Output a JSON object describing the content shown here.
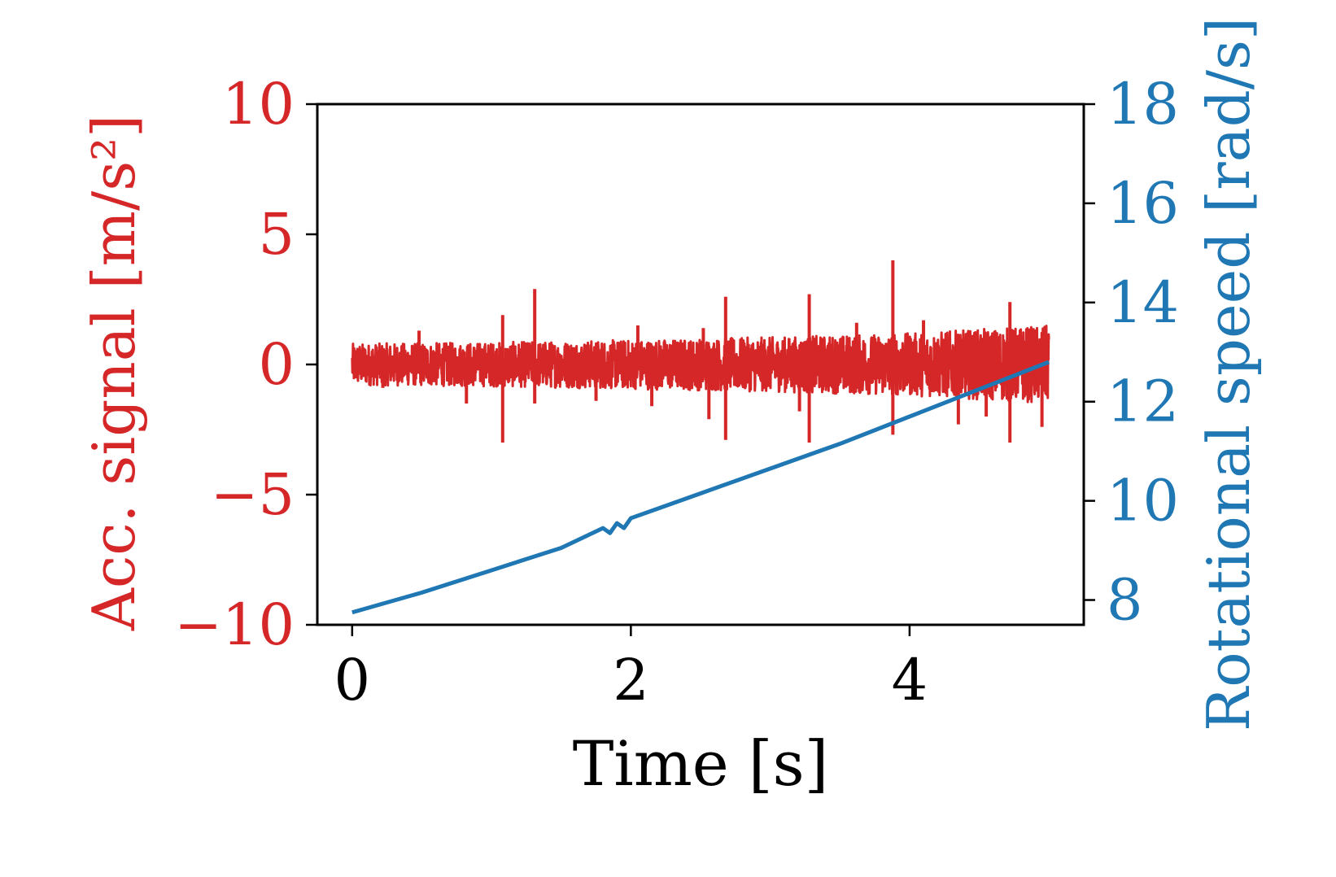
{
  "chart_data": {
    "type": "line",
    "title": "",
    "xlabel": "Time [s]",
    "ylabel_left": "Acc. signal [m/s²]",
    "ylabel_right": "Rotational speed [rad/s]",
    "xlim": [
      -0.25,
      5.25
    ],
    "ylim_left": [
      -10,
      10
    ],
    "ylim_right": [
      7.5,
      18
    ],
    "x_ticks": [
      0,
      2,
      4
    ],
    "y_left_ticks": [
      -10,
      -5,
      0,
      5,
      10
    ],
    "y_left_tick_labels": [
      "−10",
      "−5",
      "0",
      "5",
      "10"
    ],
    "y_right_ticks": [
      8,
      10,
      12,
      14,
      16,
      18
    ],
    "grid": false,
    "legend": "none",
    "colors": {
      "acc": "#d62728",
      "speed": "#1f77b4",
      "axes": "#000000"
    },
    "series": [
      {
        "axis": "left",
        "kind": "vibration-signal",
        "x_range": [
          0,
          5
        ],
        "envelope": [
          {
            "t": 0,
            "amp": 0.8
          },
          {
            "t": 1,
            "amp": 0.85
          },
          {
            "t": 2,
            "amp": 0.95
          },
          {
            "t": 3,
            "amp": 1.05
          },
          {
            "t": 4,
            "amp": 1.2
          },
          {
            "t": 5,
            "amp": 1.5
          }
        ],
        "spikes": [
          {
            "t": 0.22,
            "y": -0.9
          },
          {
            "t": 0.48,
            "y": 1.3
          },
          {
            "t": 0.82,
            "y": -1.5
          },
          {
            "t": 1.08,
            "y": 1.9
          },
          {
            "t": 1.08,
            "y": -3.0
          },
          {
            "t": 1.31,
            "y": 2.9
          },
          {
            "t": 1.31,
            "y": -1.5
          },
          {
            "t": 1.75,
            "y": -1.4
          },
          {
            "t": 2.05,
            "y": 1.5
          },
          {
            "t": 2.15,
            "y": -1.6
          },
          {
            "t": 2.52,
            "y": 1.4
          },
          {
            "t": 2.68,
            "y": 2.6
          },
          {
            "t": 2.68,
            "y": -2.9
          },
          {
            "t": 2.56,
            "y": -2.1
          },
          {
            "t": 3.28,
            "y": 2.7
          },
          {
            "t": 3.28,
            "y": -3.0
          },
          {
            "t": 3.21,
            "y": -1.8
          },
          {
            "t": 3.62,
            "y": 1.6
          },
          {
            "t": 3.88,
            "y": 4.0
          },
          {
            "t": 3.88,
            "y": -2.7
          },
          {
            "t": 4.1,
            "y": 1.7
          },
          {
            "t": 4.35,
            "y": -2.3
          },
          {
            "t": 4.55,
            "y": -2.0
          },
          {
            "t": 4.72,
            "y": 2.4
          },
          {
            "t": 4.72,
            "y": -3.0
          },
          {
            "t": 4.95,
            "y": -2.4
          }
        ]
      },
      {
        "axis": "right",
        "kind": "line",
        "x": [
          0,
          0.5,
          1.0,
          1.5,
          1.8,
          1.85,
          1.9,
          1.95,
          2.0,
          2.5,
          3.0,
          3.5,
          4.0,
          4.5,
          5.0
        ],
        "y": [
          7.75,
          8.15,
          8.6,
          9.05,
          9.45,
          9.35,
          9.55,
          9.45,
          9.65,
          10.15,
          10.65,
          11.15,
          11.7,
          12.25,
          12.8
        ]
      }
    ]
  }
}
